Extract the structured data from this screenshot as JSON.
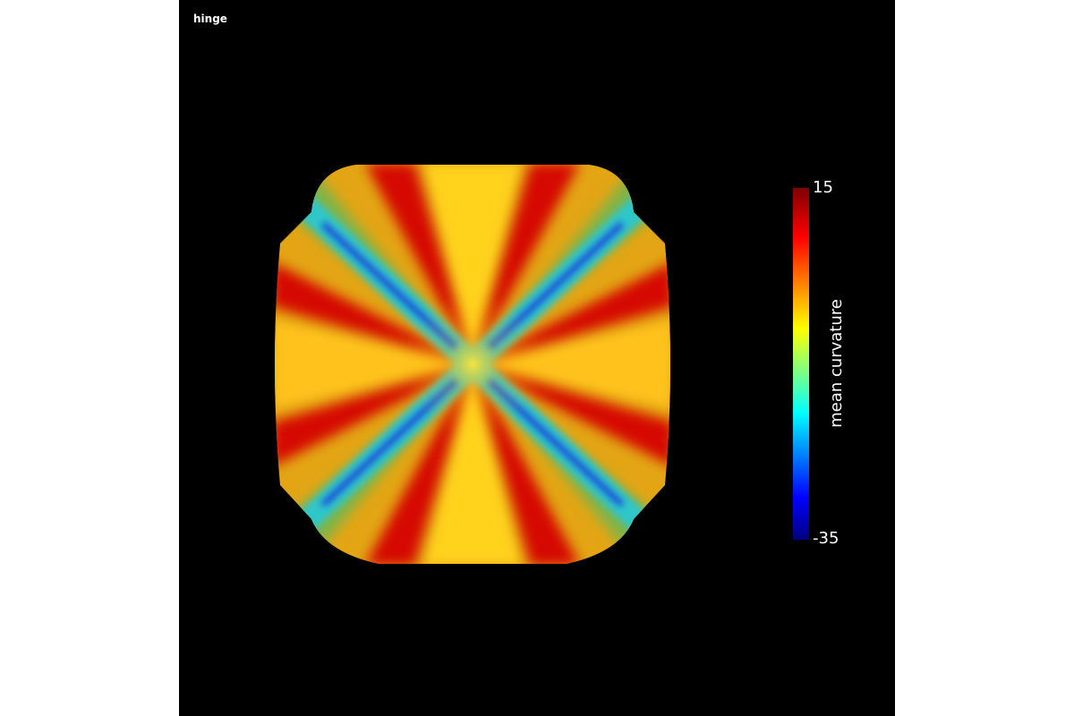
{
  "plot": {
    "title": "hinge"
  },
  "colorbar": {
    "title": "mean curvature",
    "max_label": "15",
    "min_label": "-35",
    "range": [
      -35,
      15
    ],
    "colorscale": [
      "#00007f",
      "#0000ff",
      "#00ffff",
      "#ffff00",
      "#ff0000",
      "#7f0000"
    ]
  },
  "surface": {
    "colors": {
      "background": "#000000",
      "face_outer": "#e3a514",
      "ridge": "#ffd21c",
      "band": "#d40000",
      "valley": "#1f3ed8",
      "valley_edge": "#2fc7c9",
      "corner": "#7fb44a"
    }
  }
}
